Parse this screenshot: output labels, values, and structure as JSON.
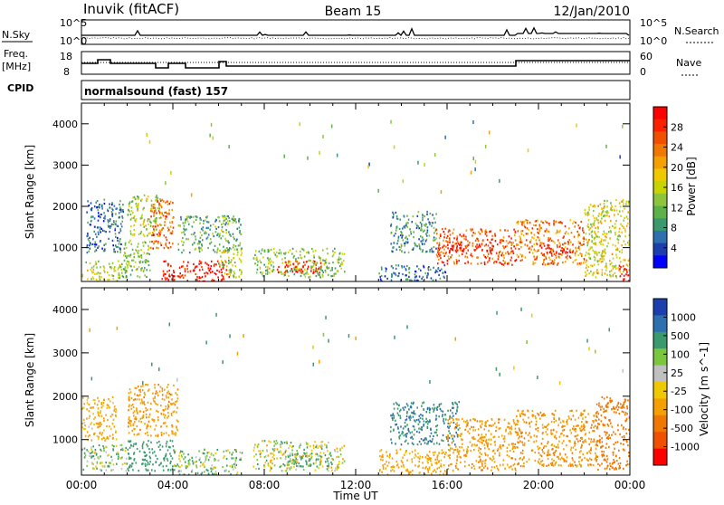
{
  "header": {
    "station": "Inuvik (fitACF)",
    "beam": "Beam 15",
    "date": "12/Jan/2010"
  },
  "noise_panel": {
    "left_label": "N.Sky",
    "left_ticks": [
      "10^5",
      "10^0"
    ],
    "right_ticks": [
      "10^5",
      "10^0"
    ],
    "right_label": "N.Search"
  },
  "freq_panel": {
    "left_label_1": "Freq.",
    "left_label_2": "[MHz]",
    "left_ticks": [
      "18",
      "8"
    ],
    "right_ticks": [
      "60",
      "0"
    ],
    "right_label": "Nave"
  },
  "cpid": {
    "label": "CPID",
    "value": "normalsound (fast) 157"
  },
  "colors": {
    "power_scale": [
      "#0000ff",
      "#1c3fb0",
      "#2e6fb0",
      "#3a9a6e",
      "#5db04a",
      "#8cc43c",
      "#c8d400",
      "#f0c800",
      "#f5a000",
      "#f07800",
      "#f05000",
      "#ff2000",
      "#ff0000"
    ],
    "velocity_scale": [
      "#ff0000",
      "#f05000",
      "#f07800",
      "#f5a000",
      "#f0c800",
      "#c0c0c0",
      "#7ac63c",
      "#3a9a6e",
      "#2e6fb0",
      "#1c3fb0"
    ]
  },
  "chart_data": [
    {
      "type": "heatmap",
      "name": "power",
      "ylabel": "Slant Range [km]",
      "yticks": [
        "1000",
        "2000",
        "3000",
        "4000"
      ],
      "ylim": [
        180,
        4500
      ],
      "colorbar": {
        "label": "Power [dB]",
        "ticks": [
          "28",
          "24",
          "20",
          "16",
          "12",
          "8",
          "4"
        ],
        "range": [
          0,
          30
        ]
      },
      "patches": [
        {
          "t0": 0.0,
          "t1": 2.0,
          "r0": 200,
          "r1": 700,
          "v": 14
        },
        {
          "t0": 0.2,
          "t1": 1.8,
          "r0": 900,
          "r1": 2200,
          "v": 6
        },
        {
          "t0": 1.8,
          "t1": 3.0,
          "r0": 300,
          "r1": 1200,
          "v": 12
        },
        {
          "t0": 2.0,
          "t1": 3.5,
          "r0": 1300,
          "r1": 2300,
          "v": 14
        },
        {
          "t0": 3.0,
          "t1": 4.0,
          "r0": 1000,
          "r1": 2200,
          "v": 24
        },
        {
          "t0": 3.5,
          "t1": 6.5,
          "r0": 200,
          "r1": 700,
          "v": 28
        },
        {
          "t0": 4.2,
          "t1": 7.0,
          "r0": 900,
          "r1": 1800,
          "v": 10
        },
        {
          "t0": 6.0,
          "t1": 7.0,
          "r0": 300,
          "r1": 1000,
          "v": 14
        },
        {
          "t0": 7.5,
          "t1": 11.5,
          "r0": 300,
          "r1": 1000,
          "v": 12
        },
        {
          "t0": 8.5,
          "t1": 10.5,
          "r0": 400,
          "r1": 700,
          "v": 26
        },
        {
          "t0": 13.5,
          "t1": 15.5,
          "r0": 900,
          "r1": 1900,
          "v": 8
        },
        {
          "t0": 13.0,
          "t1": 16.0,
          "r0": 200,
          "r1": 600,
          "v": 6
        },
        {
          "t0": 15.5,
          "t1": 19.0,
          "r0": 600,
          "r1": 1500,
          "v": 24
        },
        {
          "t0": 16.0,
          "t1": 18.0,
          "r0": 900,
          "r1": 1100,
          "v": 28
        },
        {
          "t0": 19.0,
          "t1": 22.0,
          "r0": 600,
          "r1": 1700,
          "v": 22
        },
        {
          "t0": 20.0,
          "t1": 21.5,
          "r0": 800,
          "r1": 1100,
          "v": 28
        },
        {
          "t0": 22.0,
          "t1": 24.0,
          "r0": 300,
          "r1": 2200,
          "v": 16
        },
        {
          "t0": 23.5,
          "t1": 24.0,
          "r0": 200,
          "r1": 600,
          "v": 28
        }
      ]
    },
    {
      "type": "heatmap",
      "name": "velocity",
      "ylabel": "Slant Range [km]",
      "yticks": [
        "1000",
        "2000",
        "3000",
        "4000"
      ],
      "ylim": [
        180,
        4500
      ],
      "xlabel": "Time UT",
      "xticks": [
        "00:00",
        "04:00",
        "08:00",
        "12:00",
        "16:00",
        "20:00",
        "00:00"
      ],
      "xlim": [
        0,
        24
      ],
      "colorbar": {
        "label": "Velocity [m s^-1]",
        "ticks": [
          "1000",
          "500",
          "100",
          "25",
          "-25",
          "-100",
          "-500",
          "-1000"
        ]
      },
      "patches": [
        {
          "t0": 0.0,
          "t1": 2.0,
          "r0": 300,
          "r1": 900,
          "v": 40
        },
        {
          "t0": 0.0,
          "t1": 1.5,
          "r0": 1000,
          "r1": 2000,
          "v": -150
        },
        {
          "t0": 2.0,
          "t1": 4.0,
          "r0": 300,
          "r1": 1000,
          "v": 300
        },
        {
          "t0": 2.0,
          "t1": 4.2,
          "r0": 1100,
          "r1": 2300,
          "v": -400
        },
        {
          "t0": 4.0,
          "t1": 7.0,
          "r0": 200,
          "r1": 800,
          "v": 60
        },
        {
          "t0": 7.5,
          "t1": 11.5,
          "r0": 300,
          "r1": 1000,
          "v": 0
        },
        {
          "t0": 9.0,
          "t1": 11.0,
          "r0": 400,
          "r1": 700,
          "v": 150
        },
        {
          "t0": 13.5,
          "t1": 16.5,
          "r0": 900,
          "r1": 1900,
          "v": 500
        },
        {
          "t0": 13.0,
          "t1": 16.0,
          "r0": 200,
          "r1": 800,
          "v": -200
        },
        {
          "t0": 16.0,
          "t1": 19.0,
          "r0": 300,
          "r1": 1500,
          "v": -400
        },
        {
          "t0": 19.0,
          "t1": 22.5,
          "r0": 400,
          "r1": 1700,
          "v": -450
        },
        {
          "t0": 22.5,
          "t1": 24.0,
          "r0": 300,
          "r1": 2000,
          "v": -700
        }
      ]
    }
  ]
}
